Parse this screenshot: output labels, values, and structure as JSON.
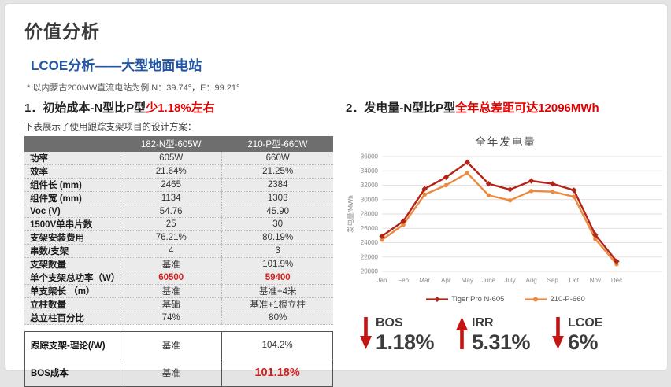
{
  "page": {
    "title": "价值分析",
    "subtitle": "LCOE分析——大型地面电站",
    "note": "* 以内蒙古200MW直流电站为例 N：39.74°，E：99.21°"
  },
  "left": {
    "heading_prefix": "1．初始成本-N型比P型",
    "heading_highlight": "少1.18%左右",
    "table_caption": "下表展示了使用跟踪支架项目的设计方案：",
    "main_table": {
      "columns": [
        "",
        "182-N型-605W",
        "210-P型-660W"
      ],
      "rows": [
        {
          "label": "功率",
          "values": [
            "605W",
            "660W"
          ],
          "red": false
        },
        {
          "label": "效率",
          "values": [
            "21.64%",
            "21.25%"
          ],
          "red": false
        },
        {
          "label": "组件长 (mm)",
          "values": [
            "2465",
            "2384"
          ],
          "red": false
        },
        {
          "label": "组件宽 (mm)",
          "values": [
            "1134",
            "1303"
          ],
          "red": false
        },
        {
          "label": "Voc (V)",
          "values": [
            "54.76",
            "45.90"
          ],
          "red": false
        },
        {
          "label": "1500V单串片数",
          "values": [
            "25",
            "30"
          ],
          "red": false
        },
        {
          "label": "支架安装费用",
          "values": [
            "76.21%",
            "80.19%"
          ],
          "red": false
        },
        {
          "label": "串数/支架",
          "values": [
            "4",
            "3"
          ],
          "red": false
        },
        {
          "label": "支架数量",
          "values": [
            "基准",
            "101.9%"
          ],
          "red": false
        },
        {
          "label": "单个支架总功率（W）",
          "values": [
            "60500",
            "59400"
          ],
          "red": true
        },
        {
          "label": "单支架长 （m）",
          "values": [
            "基准",
            "基准+4米"
          ],
          "red": false
        },
        {
          "label": "立柱数量",
          "values": [
            "基础",
            "基准+1根立柱"
          ],
          "red": false
        },
        {
          "label": "总立柱百分比",
          "values": [
            "74%",
            "80%"
          ],
          "red": false
        }
      ]
    },
    "summary_table": {
      "rows": [
        {
          "label": "跟踪支架-理论(/W)",
          "values": [
            "基准",
            "104.2%"
          ],
          "red": false
        },
        {
          "label": "BOS成本",
          "values": [
            "基准",
            "101.18%"
          ],
          "red": true
        }
      ]
    }
  },
  "right": {
    "heading_prefix": "2．发电量-N型比P型",
    "heading_highlight": "全年总差距可达12096MWh",
    "metrics": [
      {
        "name": "BOS",
        "value": "1.18%",
        "direction": "down"
      },
      {
        "name": "IRR",
        "value": "5.31%",
        "direction": "up"
      },
      {
        "name": "LCOE",
        "value": "6%",
        "direction": "down"
      }
    ]
  },
  "chart_data": {
    "type": "line",
    "title": "全年发电量",
    "ylabel": "发电量/MWh",
    "categories": [
      "Jan",
      "Feb",
      "Mar",
      "Apr",
      "May",
      "June",
      "July",
      "Aug",
      "Sep",
      "Oct",
      "Nov",
      "Dec"
    ],
    "series": [
      {
        "name": "Tiger Pro N-605",
        "color": "#b22318",
        "marker": "diamond",
        "values": [
          24900,
          27000,
          31500,
          33100,
          35200,
          32200,
          31400,
          32600,
          32200,
          31300,
          25100,
          21400
        ]
      },
      {
        "name": "210-P-660",
        "color": "#ec8a40",
        "marker": "circle",
        "values": [
          24400,
          26500,
          30700,
          32000,
          33700,
          30600,
          29900,
          31200,
          31100,
          30400,
          24500,
          21000
        ]
      }
    ],
    "ylim": [
      20000,
      36000
    ],
    "ytick_step": 2000,
    "grid": true,
    "legend_position": "bottom"
  },
  "colors": {
    "accent_red": "#e10000",
    "accent_blue": "#2156a5",
    "arrow_red": "#c41414",
    "grid_line": "#e7dede",
    "axis_text": "#8a8a8a",
    "table_header_bg": "#6e6e6e",
    "table_row_bg": "#ebebeb"
  }
}
